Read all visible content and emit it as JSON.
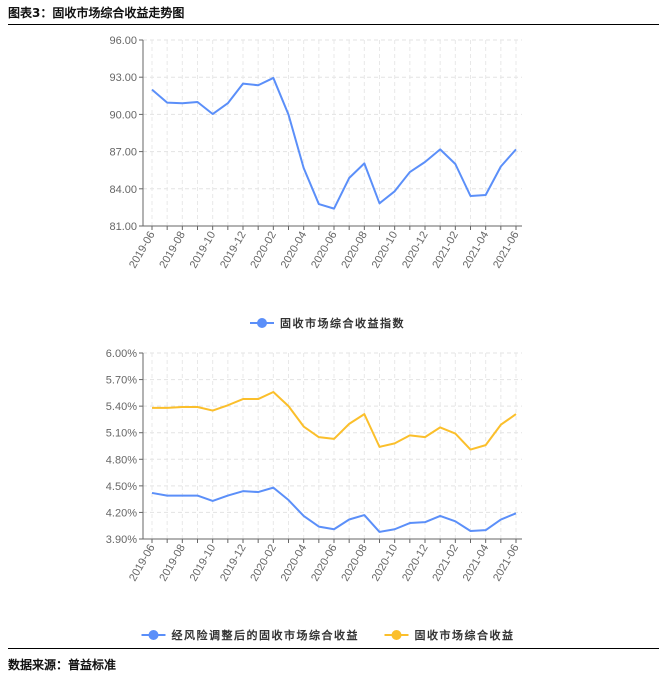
{
  "header": {
    "title": "图表3：固收市场综合收益走势图"
  },
  "footer": {
    "source": "数据来源：普益标准"
  },
  "chart_data": [
    {
      "type": "line",
      "categories": [
        "2019-06",
        "2019-07",
        "2019-08",
        "2019-09",
        "2019-10",
        "2019-11",
        "2019-12",
        "2020-01",
        "2020-02",
        "2020-03",
        "2020-04",
        "2020-05",
        "2020-06",
        "2020-07",
        "2020-08",
        "2020-09",
        "2020-10",
        "2020-11",
        "2020-12",
        "2021-01",
        "2021-02",
        "2021-03",
        "2021-04",
        "2021-05",
        "2021-06"
      ],
      "tick_labels": [
        "2019-06",
        "2019-08",
        "2019-10",
        "2019-12",
        "2020-02",
        "2020-04",
        "2020-06",
        "2020-08",
        "2020-10",
        "2020-12",
        "2021-02",
        "2021-04",
        "2021-06"
      ],
      "yticks": [
        "81.00",
        "84.00",
        "87.00",
        "90.00",
        "93.00",
        "96.00"
      ],
      "ylim": [
        81,
        96
      ],
      "grid": true,
      "legend_position": "bottom",
      "series": [
        {
          "name": "固收市场综合收益指数",
          "color": "#5b8ff9",
          "values": [
            92.0,
            90.95,
            90.9,
            91.0,
            90.03,
            90.9,
            92.48,
            92.35,
            92.94,
            89.98,
            85.68,
            82.77,
            82.4,
            84.87,
            86.05,
            82.83,
            83.8,
            85.35,
            86.16,
            87.18,
            86.0,
            83.42,
            83.5,
            85.8,
            87.18
          ]
        }
      ]
    },
    {
      "type": "line",
      "categories": [
        "2019-06",
        "2019-07",
        "2019-08",
        "2019-09",
        "2019-10",
        "2019-11",
        "2019-12",
        "2020-01",
        "2020-02",
        "2020-03",
        "2020-04",
        "2020-05",
        "2020-06",
        "2020-07",
        "2020-08",
        "2020-09",
        "2020-10",
        "2020-11",
        "2020-12",
        "2021-01",
        "2021-02",
        "2021-03",
        "2021-04",
        "2021-05",
        "2021-06"
      ],
      "tick_labels": [
        "2019-06",
        "2019-08",
        "2019-10",
        "2019-12",
        "2020-02",
        "2020-04",
        "2020-06",
        "2020-08",
        "2020-10",
        "2020-12",
        "2021-02",
        "2021-04",
        "2021-06"
      ],
      "yticks": [
        "3.90%",
        "4.20%",
        "4.50%",
        "4.80%",
        "5.10%",
        "5.40%",
        "5.70%",
        "6.00%"
      ],
      "ylim": [
        3.9,
        6.0
      ],
      "unit": "%",
      "grid": true,
      "legend_position": "bottom",
      "series": [
        {
          "name": "经风险调整后的固收市场综合收益",
          "color": "#5b8ff9",
          "values": [
            4.42,
            4.39,
            4.39,
            4.39,
            4.33,
            4.39,
            4.44,
            4.43,
            4.48,
            4.34,
            4.16,
            4.04,
            4.01,
            4.12,
            4.17,
            3.98,
            4.01,
            4.08,
            4.09,
            4.16,
            4.1,
            3.99,
            4.0,
            4.12,
            4.19
          ]
        },
        {
          "name": "固收市场综合收益",
          "color": "#fbbf2b",
          "values": [
            5.38,
            5.38,
            5.39,
            5.39,
            5.35,
            5.41,
            5.48,
            5.48,
            5.56,
            5.4,
            5.17,
            5.05,
            5.03,
            5.2,
            5.31,
            4.94,
            4.98,
            5.07,
            5.05,
            5.16,
            5.09,
            4.91,
            4.96,
            5.19,
            5.31
          ]
        }
      ]
    }
  ]
}
